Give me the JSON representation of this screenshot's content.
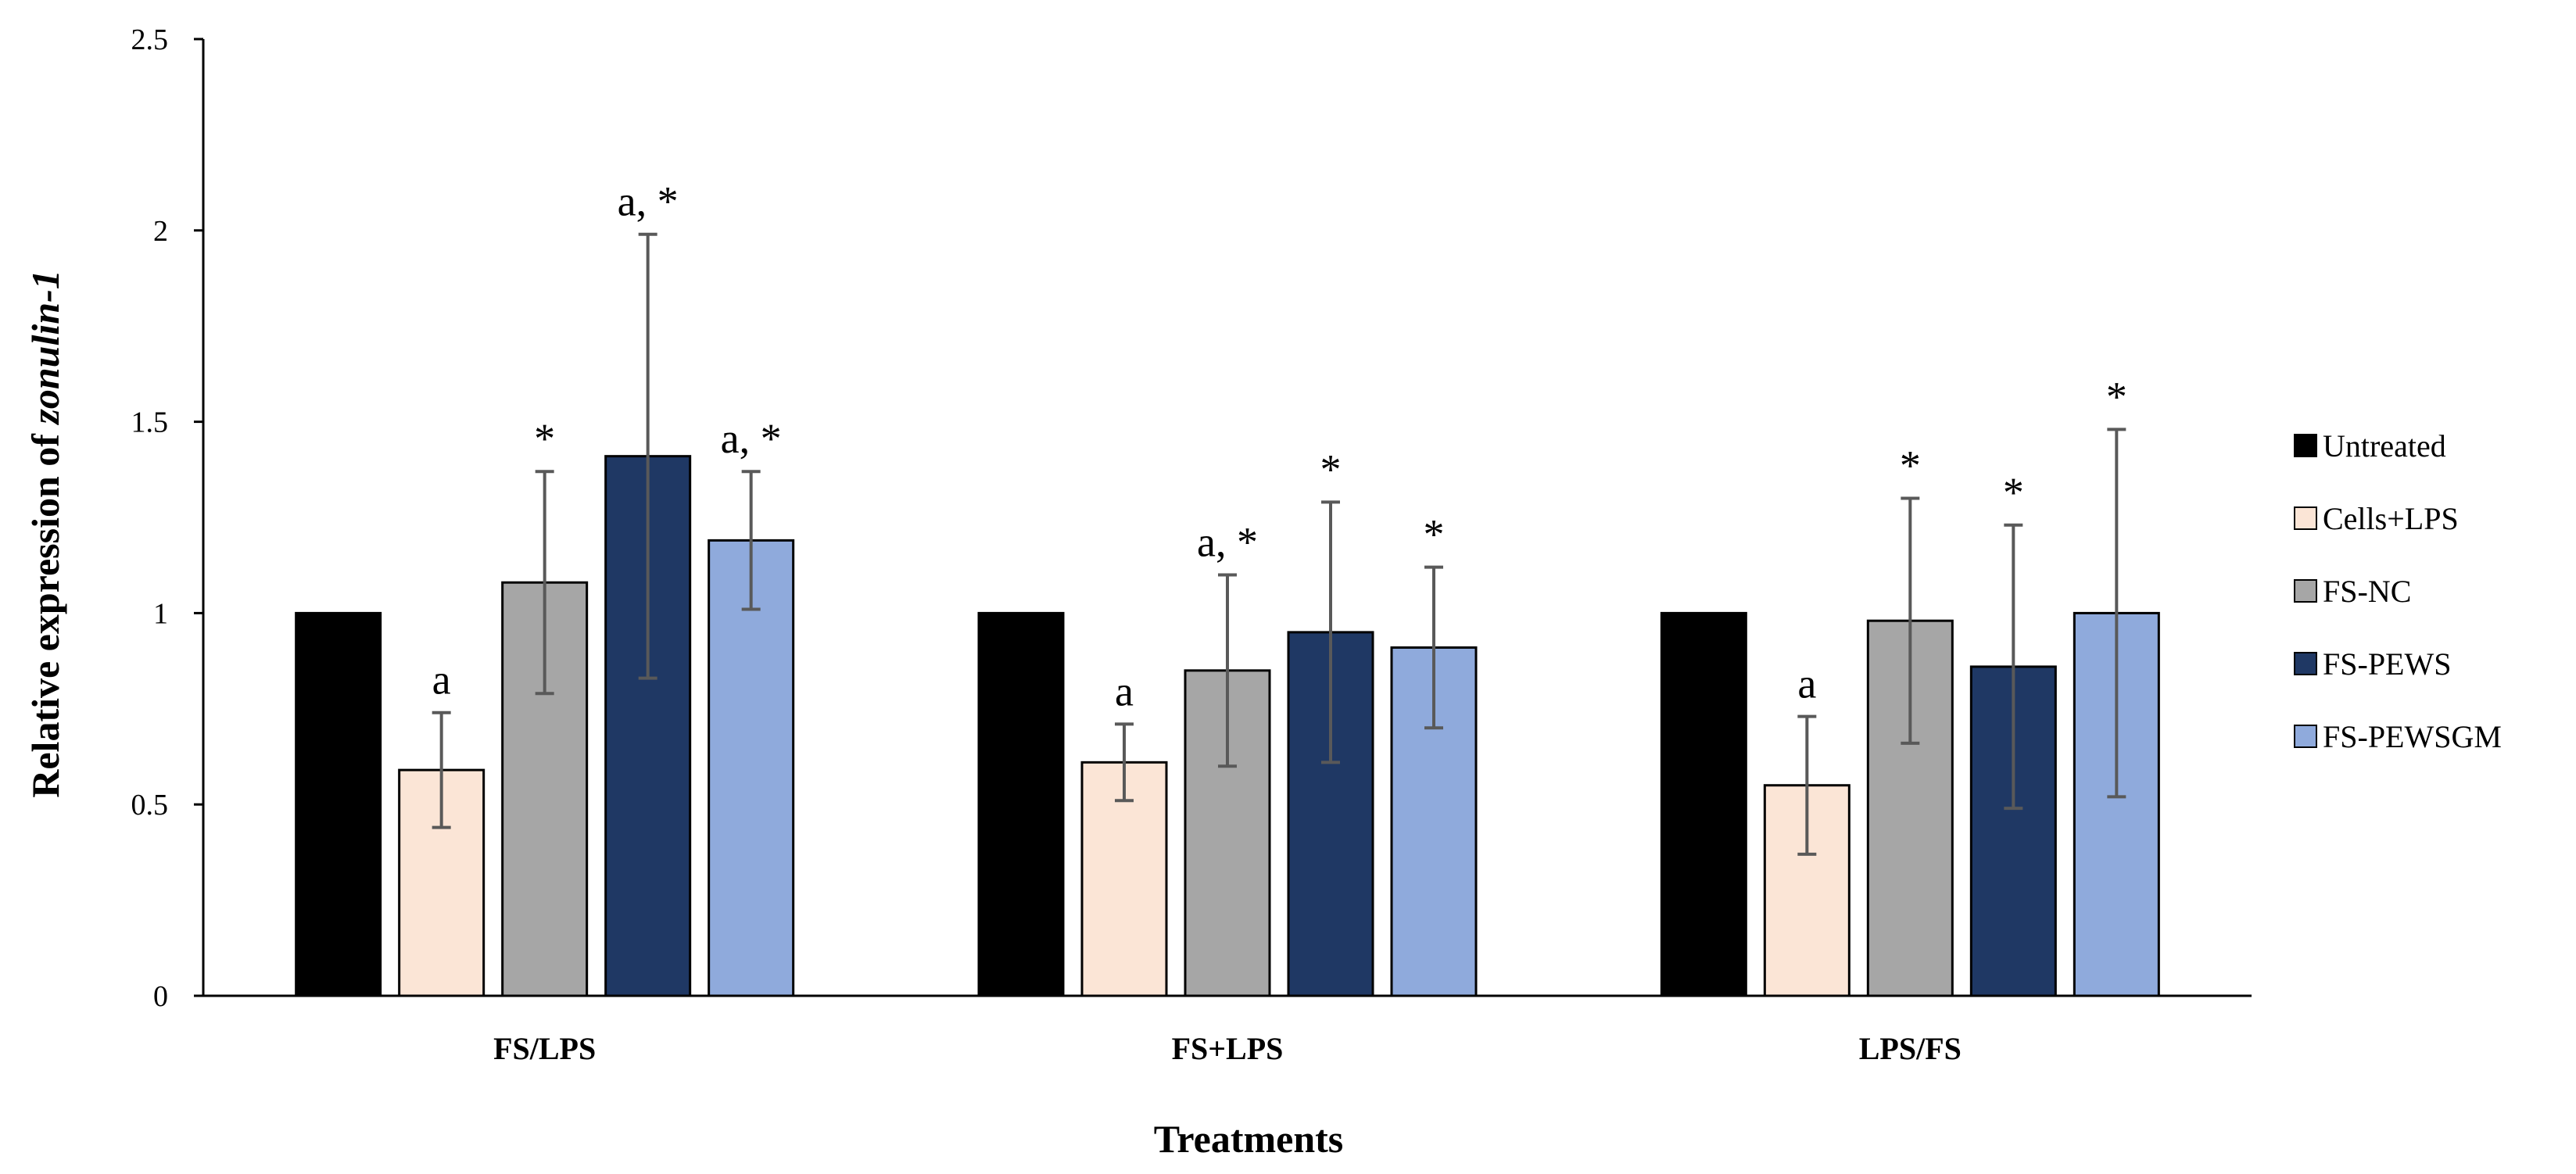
{
  "chart_data": {
    "type": "bar",
    "title": "",
    "xlabel": "Treatments",
    "ylabel_prefix": "Relative expression of ",
    "ylabel_italic": "zonulin-1",
    "ylim": [
      0,
      2.5
    ],
    "yticks": [
      0,
      0.5,
      1,
      1.5,
      2,
      2.5
    ],
    "ytick_labels": [
      "0",
      "0.5",
      "1",
      "1.5",
      "2",
      "2.5"
    ],
    "categories": [
      "FS/LPS",
      "FS+LPS",
      "LPS/FS"
    ],
    "legend_position": "right",
    "series": [
      {
        "name": "Untreated",
        "color": "#000000",
        "values": [
          1.0,
          1.0,
          1.0
        ],
        "errors": [
          0.0,
          0.0,
          0.0
        ],
        "labels": [
          "",
          "",
          ""
        ]
      },
      {
        "name": "Cells+LPS",
        "color": "#fbe5d6",
        "values": [
          0.59,
          0.61,
          0.55
        ],
        "errors": [
          0.15,
          0.1,
          0.18
        ],
        "labels": [
          "a",
          "a",
          "a"
        ]
      },
      {
        "name": "FS-NC",
        "color": "#a6a6a6",
        "values": [
          1.08,
          0.85,
          0.98
        ],
        "errors": [
          0.29,
          0.25,
          0.32
        ],
        "labels": [
          "*",
          "a, *",
          "*"
        ]
      },
      {
        "name": "FS-PEWS",
        "color": "#1f3864",
        "values": [
          1.41,
          0.95,
          0.86
        ],
        "errors": [
          0.58,
          0.34,
          0.37
        ],
        "labels": [
          "a, *",
          "*",
          "*"
        ]
      },
      {
        "name": "FS-PEWSGM",
        "color": "#8faadc",
        "values": [
          1.19,
          0.91,
          1.0
        ],
        "errors": [
          0.18,
          0.21,
          0.48
        ],
        "labels": [
          "a, *",
          "*",
          "*"
        ]
      }
    ]
  }
}
